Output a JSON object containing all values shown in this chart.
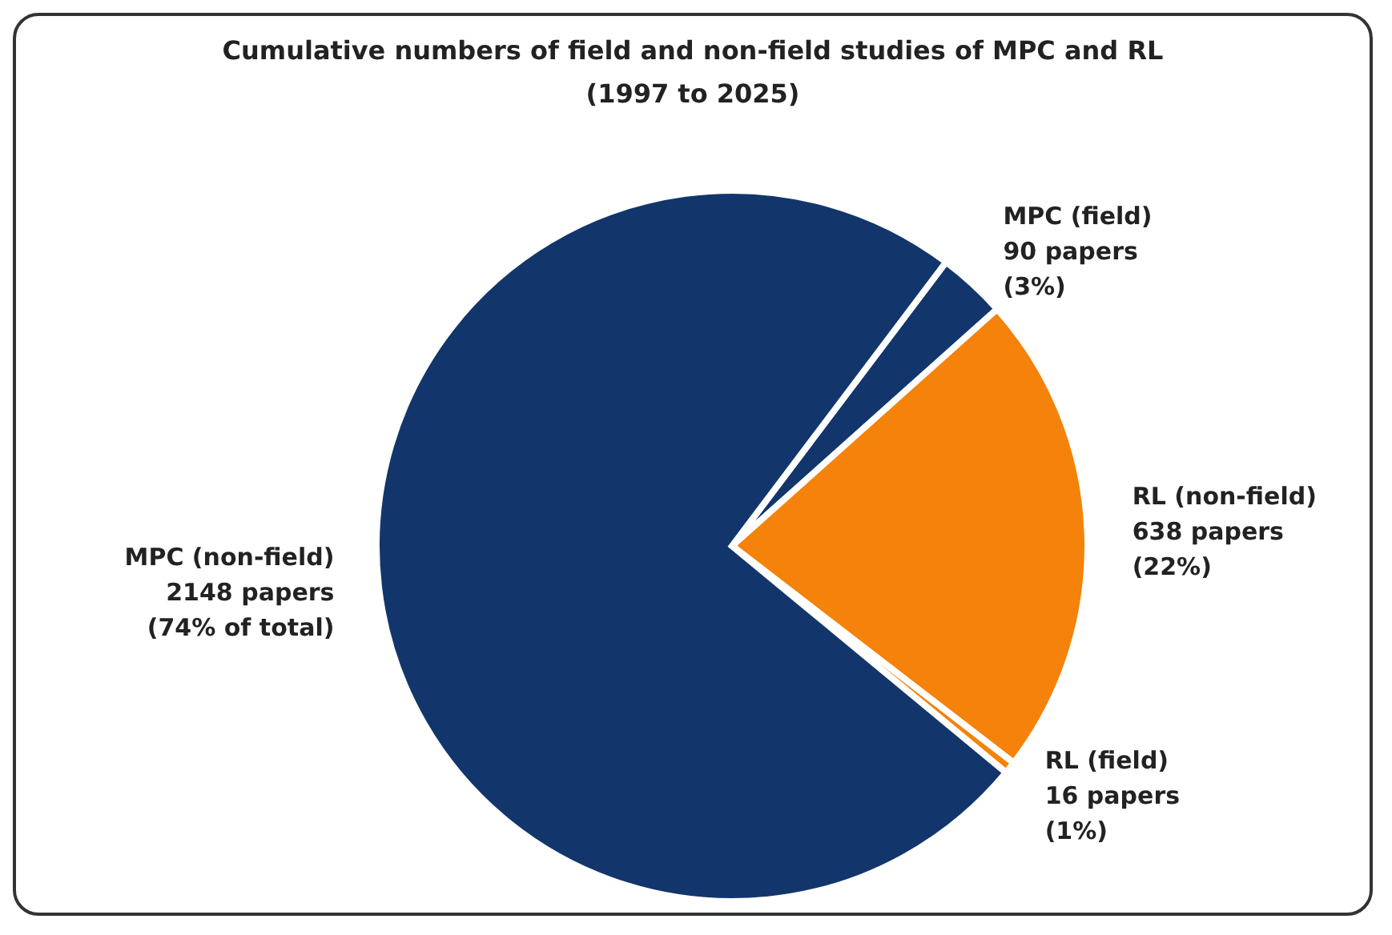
{
  "chart_data": {
    "type": "pie",
    "title": "Cumulative numbers of field and non-field studies of MPC and RL",
    "subtitle": "(1997 to 2025)",
    "categories": [
      "MPC (field)",
      "RL (non-field)",
      "RL (field)",
      "MPC (non-field)"
    ],
    "values": [
      90,
      638,
      16,
      2148
    ],
    "value_labels": [
      "90 papers\n(3%)",
      "638 papers\n(22%)",
      "16 papers\n(1%)",
      "2148 papers\n(74% of total)"
    ],
    "colors": [
      "#12366b",
      "#f5820a",
      "#f5820a",
      "#12366b"
    ]
  }
}
